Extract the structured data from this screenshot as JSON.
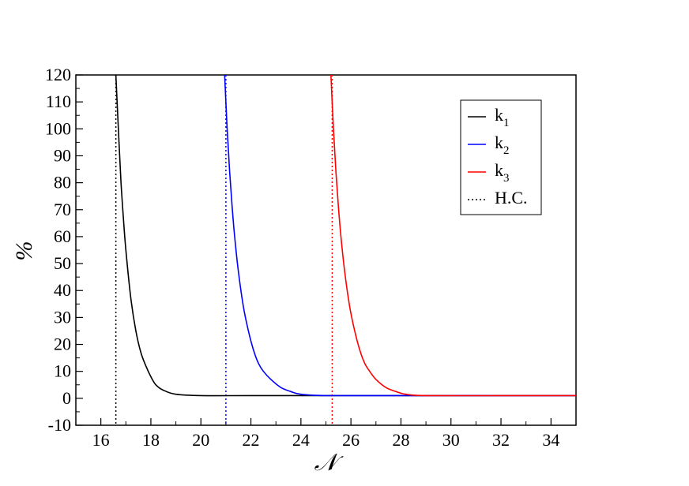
{
  "chart_data": {
    "type": "line",
    "title": "",
    "xlabel": "𝒩",
    "ylabel": "%",
    "xlim": [
      15,
      35
    ],
    "ylim": [
      -10,
      120
    ],
    "xticks": [
      16,
      18,
      20,
      22,
      24,
      26,
      28,
      30,
      32,
      34
    ],
    "yticks": [
      -10,
      0,
      10,
      20,
      30,
      40,
      50,
      60,
      70,
      80,
      90,
      100,
      110,
      120
    ],
    "grid": false,
    "legend_position": "top-right",
    "series": [
      {
        "name": "k1",
        "label_main": "k",
        "label_sub": "1",
        "color": "#000000",
        "style": "solid",
        "x": [
          16.6,
          16.7,
          16.8,
          16.9,
          17.0,
          17.2,
          17.4,
          17.6,
          17.8,
          18.0,
          18.2,
          18.5,
          19.0,
          20.0,
          22.0,
          25.0,
          30.0,
          35.0
        ],
        "y": [
          120,
          100,
          81,
          67,
          55,
          37,
          25,
          17,
          12,
          8,
          5,
          3,
          1.5,
          1,
          1,
          1,
          1,
          1
        ]
      },
      {
        "name": "k2",
        "label_main": "k",
        "label_sub": "2",
        "color": "#0000ff",
        "style": "solid",
        "x": [
          20.95,
          21.05,
          21.15,
          21.25,
          21.35,
          21.5,
          21.7,
          21.9,
          22.1,
          22.3,
          22.5,
          22.8,
          23.2,
          23.6,
          24.0,
          25.0,
          28.0,
          35.0
        ],
        "y": [
          120,
          100,
          84,
          71,
          60,
          47,
          34,
          25,
          18,
          13,
          10,
          7,
          4,
          2.5,
          1.5,
          1,
          1,
          1
        ]
      },
      {
        "name": "k3",
        "label_main": "k",
        "label_sub": "3",
        "color": "#ff0000",
        "style": "solid",
        "x": [
          25.2,
          25.3,
          25.4,
          25.5,
          25.6,
          25.75,
          25.95,
          26.15,
          26.35,
          26.55,
          26.75,
          27.0,
          27.4,
          27.8,
          28.2,
          29.0,
          32.0,
          35.0
        ],
        "y": [
          120,
          100,
          84,
          71,
          60,
          47,
          34,
          25,
          18,
          13,
          10,
          7,
          4,
          2.5,
          1.5,
          1,
          1,
          1
        ]
      },
      {
        "name": "H.C.",
        "label_main": "H.C.",
        "label_sub": "",
        "color": "#000000",
        "style": "dotted",
        "vlines": [
          {
            "x": 16.6,
            "color": "#000000"
          },
          {
            "x": 21.0,
            "color": "#0000ff"
          },
          {
            "x": 25.25,
            "color": "#ff0000"
          }
        ]
      }
    ]
  }
}
